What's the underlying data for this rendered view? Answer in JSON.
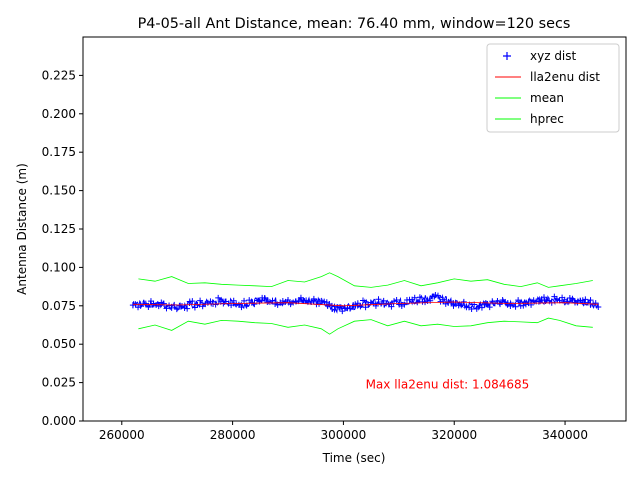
{
  "chart_data": {
    "type": "line",
    "title": "P4-05-all Ant Distance, mean: 76.40 mm, window=120 secs",
    "xlabel": "Time (sec)",
    "ylabel": "Antenna Distance (m)",
    "xlim": [
      253000,
      351000
    ],
    "ylim": [
      0.0,
      0.25
    ],
    "xticks": [
      260000,
      280000,
      300000,
      320000,
      340000
    ],
    "xtick_labels": [
      "260000",
      "280000",
      "300000",
      "320000",
      "340000"
    ],
    "yticks": [
      0.0,
      0.025,
      0.05,
      0.075,
      0.1,
      0.125,
      0.15,
      0.175,
      0.2,
      0.225
    ],
    "ytick_labels": [
      "0.000",
      "0.025",
      "0.050",
      "0.075",
      "0.100",
      "0.125",
      "0.150",
      "0.175",
      "0.200",
      "0.225"
    ],
    "grid": false,
    "legend_position": "top-right",
    "annotation": {
      "text": "Max lla2enu dist: 1.084685",
      "x": 304000,
      "y": 0.021,
      "color": "#ff0000"
    },
    "series": [
      {
        "name": "xyz dist",
        "style": "plus-markers",
        "color": "#0000ff",
        "x": [
          262000,
          264000,
          266000,
          268000,
          270000,
          272000,
          274000,
          276000,
          278000,
          280000,
          282000,
          284000,
          286000,
          288000,
          290000,
          292000,
          294000,
          296000,
          298000,
          300000,
          302000,
          304000,
          306000,
          308000,
          310000,
          312000,
          314000,
          316000,
          318000,
          320000,
          322000,
          324000,
          326000,
          328000,
          330000,
          332000,
          334000,
          336000,
          338000,
          340000,
          342000,
          344000,
          346000
        ],
        "y": [
          0.0755,
          0.0765,
          0.076,
          0.0755,
          0.0745,
          0.0755,
          0.076,
          0.077,
          0.078,
          0.077,
          0.076,
          0.0775,
          0.0795,
          0.078,
          0.0765,
          0.0785,
          0.079,
          0.077,
          0.073,
          0.074,
          0.075,
          0.0765,
          0.077,
          0.076,
          0.077,
          0.078,
          0.079,
          0.081,
          0.079,
          0.077,
          0.076,
          0.075,
          0.0765,
          0.077,
          0.076,
          0.077,
          0.078,
          0.0785,
          0.079,
          0.078,
          0.0775,
          0.077,
          0.0745
        ],
        "jitter": 0.0025
      },
      {
        "name": "lla2enu dist",
        "style": "line",
        "color": "#ff0000",
        "x": [
          262000,
          270000,
          280000,
          290000,
          300000,
          310000,
          320000,
          330000,
          340000,
          346000
        ],
        "y": [
          0.076,
          0.0755,
          0.0765,
          0.077,
          0.075,
          0.0765,
          0.0775,
          0.0765,
          0.077,
          0.076
        ]
      },
      {
        "name": "mean",
        "style": "line",
        "color": "#00ff00",
        "x": [
          263000,
          266000,
          269000,
          272000,
          275000,
          278000,
          281000,
          284000,
          287000,
          290000,
          293000,
          296000,
          297500,
          299000,
          302000,
          305000,
          308000,
          311000,
          314000,
          317000,
          320000,
          323000,
          326000,
          329000,
          332000,
          335000,
          337000,
          339000,
          342000,
          345000
        ],
        "y": [
          0.0925,
          0.091,
          0.094,
          0.0895,
          0.09,
          0.089,
          0.0885,
          0.088,
          0.0875,
          0.0915,
          0.0905,
          0.094,
          0.0965,
          0.094,
          0.088,
          0.087,
          0.0885,
          0.0915,
          0.088,
          0.09,
          0.0925,
          0.091,
          0.092,
          0.089,
          0.0875,
          0.09,
          0.087,
          0.088,
          0.0895,
          0.0915
        ]
      },
      {
        "name": "hprec",
        "style": "line",
        "color": "#00ff00",
        "x": [
          263000,
          266000,
          269000,
          272000,
          275000,
          278000,
          281000,
          284000,
          287000,
          290000,
          293000,
          296000,
          297500,
          299000,
          302000,
          305000,
          308000,
          311000,
          314000,
          317000,
          320000,
          323000,
          326000,
          329000,
          332000,
          335000,
          337000,
          339000,
          342000,
          345000
        ],
        "y": [
          0.06,
          0.0625,
          0.059,
          0.065,
          0.063,
          0.0655,
          0.065,
          0.064,
          0.0635,
          0.061,
          0.0625,
          0.06,
          0.0565,
          0.06,
          0.065,
          0.066,
          0.062,
          0.065,
          0.062,
          0.063,
          0.0615,
          0.062,
          0.064,
          0.065,
          0.0645,
          0.064,
          0.067,
          0.0655,
          0.062,
          0.061
        ]
      }
    ]
  }
}
